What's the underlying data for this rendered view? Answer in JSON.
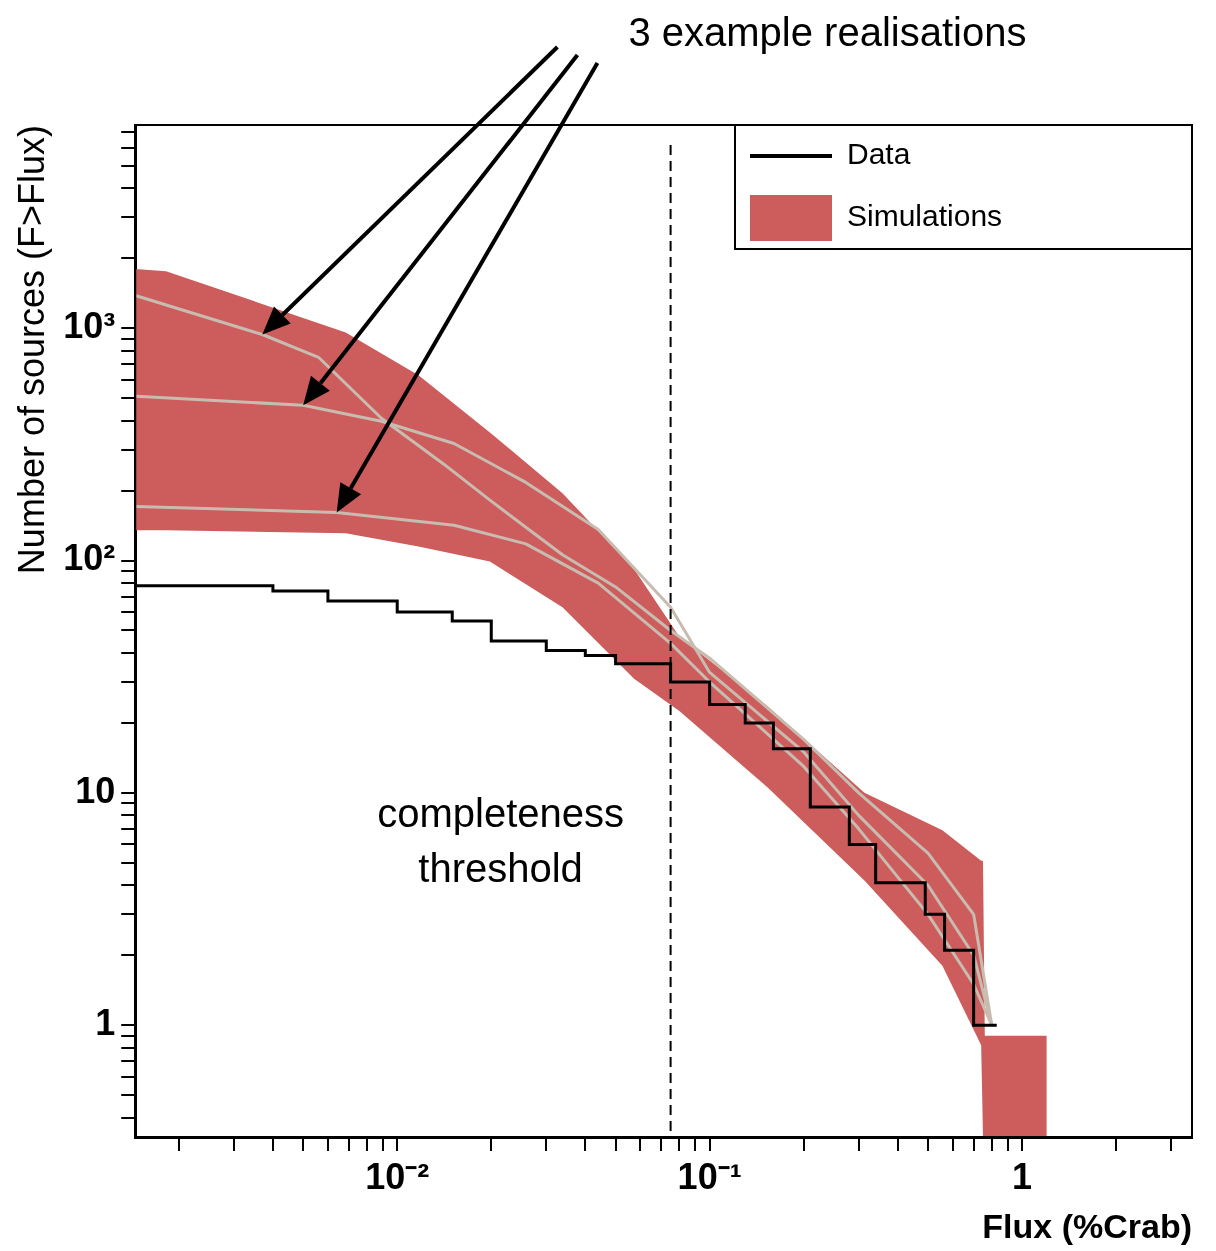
{
  "chart_data": {
    "type": "line",
    "xlabel": "Flux (%Crab)",
    "ylabel": "Number of sources (F>Flux)",
    "annotations": [
      "3 example realisations"
    ],
    "log": "xy",
    "grid": false,
    "legend": "top right",
    "xlim": [
      0.00145,
      3.5
    ],
    "ylim": [
      0.33,
      7500
    ],
    "xticks": [
      {
        "value": 0.002,
        "label": null
      },
      {
        "value": 0.003,
        "label": null
      },
      {
        "value": 0.004,
        "label": null
      },
      {
        "value": 0.005,
        "label": null
      },
      {
        "value": 0.006,
        "label": null
      },
      {
        "value": 0.007,
        "label": null
      },
      {
        "value": 0.008,
        "label": null
      },
      {
        "value": 0.009,
        "label": null
      },
      {
        "value": 0.01,
        "label": "10⁻²"
      },
      {
        "value": 0.02,
        "label": null
      },
      {
        "value": 0.03,
        "label": null
      },
      {
        "value": 0.04,
        "label": null
      },
      {
        "value": 0.05,
        "label": null
      },
      {
        "value": 0.06,
        "label": null
      },
      {
        "value": 0.07,
        "label": null
      },
      {
        "value": 0.08,
        "label": null
      },
      {
        "value": 0.09,
        "label": null
      },
      {
        "value": 0.1,
        "label": "10⁻¹"
      },
      {
        "value": 0.2,
        "label": null
      },
      {
        "value": 0.3,
        "label": null
      },
      {
        "value": 0.4,
        "label": null
      },
      {
        "value": 0.5,
        "label": null
      },
      {
        "value": 0.6,
        "label": null
      },
      {
        "value": 0.7,
        "label": null
      },
      {
        "value": 0.8,
        "label": null
      },
      {
        "value": 0.9,
        "label": null
      },
      1,
      {
        "value": 2,
        "label": null
      },
      {
        "value": 3,
        "label": null
      }
    ],
    "yticks": [
      {
        "value": 0.4,
        "label": null
      },
      {
        "value": 0.5,
        "label": null
      },
      {
        "value": 0.6,
        "label": null
      },
      {
        "value": 0.7,
        "label": null
      },
      {
        "value": 0.8,
        "label": null
      },
      {
        "value": 0.9,
        "label": null
      },
      1,
      {
        "value": 2,
        "label": null
      },
      {
        "value": 3,
        "label": null
      },
      {
        "value": 4,
        "label": null
      },
      {
        "value": 5,
        "label": null
      },
      {
        "value": 6,
        "label": null
      },
      {
        "value": 7,
        "label": null
      },
      {
        "value": 8,
        "label": null
      },
      {
        "value": 9,
        "label": null
      },
      10,
      {
        "value": 20,
        "label": null
      },
      {
        "value": 30,
        "label": null
      },
      {
        "value": 40,
        "label": null
      },
      {
        "value": 50,
        "label": null
      },
      {
        "value": 60,
        "label": null
      },
      {
        "value": 70,
        "label": null
      },
      {
        "value": 80,
        "label": null
      },
      {
        "value": 90,
        "label": null
      },
      {
        "value": 100,
        "label": "10²"
      },
      {
        "value": 200,
        "label": null
      },
      {
        "value": 300,
        "label": null
      },
      {
        "value": 400,
        "label": null
      },
      {
        "value": 500,
        "label": null
      },
      {
        "value": 600,
        "label": null
      },
      {
        "value": 700,
        "label": null
      },
      {
        "value": 800,
        "label": null
      },
      {
        "value": 900,
        "label": null
      },
      {
        "value": 1000,
        "label": "10³"
      },
      {
        "value": 2000,
        "label": null
      },
      {
        "value": 3000,
        "label": null
      },
      {
        "value": 4000,
        "label": null
      },
      {
        "value": 5000,
        "label": null
      },
      {
        "value": 6000,
        "label": null
      },
      {
        "value": 7000,
        "label": null
      }
    ],
    "ref_lines": [
      {
        "axis": "x",
        "value": 0.075,
        "label": "completeness threshold",
        "color": "#000000",
        "line_style": "dashed"
      }
    ],
    "series": [
      {
        "name": "Data",
        "type": "step",
        "color": "#000000",
        "x": [
          0.00145,
          0.004,
          0.006,
          0.01,
          0.015,
          0.02,
          0.03,
          0.04,
          0.05,
          0.075,
          0.1,
          0.13,
          0.16,
          0.21,
          0.28,
          0.34,
          0.49,
          0.565,
          0.7,
          0.77,
          0.83
        ],
        "values": [
          78,
          78,
          74,
          67,
          60,
          55,
          45,
          41,
          39,
          36,
          30,
          24,
          20,
          15.5,
          8.7,
          6,
          4.1,
          3,
          2.1,
          1,
          1
        ]
      },
      {
        "name": "Simulations",
        "type": "area",
        "color": "#cd5c5c",
        "x": [
          0.00145,
          0.00182,
          0.00684,
          0.0117,
          0.0198,
          0.0338,
          0.0573,
          0.08,
          0.154,
          0.313,
          0.556,
          0.74,
          0.75,
          0.76,
          1.2
        ],
        "values": [
          null,
          null,
          null,
          null,
          null,
          null,
          null,
          null,
          null,
          null,
          null,
          null,
          null,
          null,
          null
        ],
        "lower": [
          135,
          135,
          131,
          115,
          99,
          63,
          31,
          22.5,
          10.5,
          4.2,
          1.8,
          0.82,
          0.33,
          0.33,
          0.33
        ],
        "upper": [
          1800,
          1760,
          960,
          627,
          356,
          195,
          92,
          47,
          23.5,
          10,
          6.9,
          5.1,
          5.1,
          0.9,
          0.9
        ]
      },
      {
        "color": "#c8bcb0",
        "x": [
          0.00146,
          0.0037,
          0.0056,
          0.0089,
          0.0141,
          0.0198,
          0.0338,
          0.05,
          0.075,
          0.1,
          0.2,
          0.3,
          0.5,
          0.7,
          0.8
        ],
        "values": [
          1380,
          940,
          750,
          410,
          260,
          182,
          106,
          77,
          50,
          38,
          17,
          10,
          5.5,
          3,
          1
        ]
      },
      {
        "color": "#c8bcb0",
        "x": [
          0.00146,
          0.005,
          0.0089,
          0.0152,
          0.0258,
          0.044,
          0.075,
          0.1,
          0.2,
          0.3,
          0.5,
          0.7,
          0.8
        ],
        "values": [
          510,
          466,
          398,
          319,
          217,
          136,
          63,
          33,
          15,
          8,
          4,
          2,
          1
        ]
      },
      {
        "color": "#c8bcb0",
        "x": [
          0.00146,
          0.0064,
          0.0152,
          0.0258,
          0.044,
          0.075,
          0.1,
          0.2,
          0.3,
          0.5,
          0.7,
          0.8
        ],
        "values": [
          171,
          161,
          142,
          118,
          80,
          44,
          30,
          13,
          7,
          3,
          1.5,
          1
        ]
      }
    ]
  }
}
